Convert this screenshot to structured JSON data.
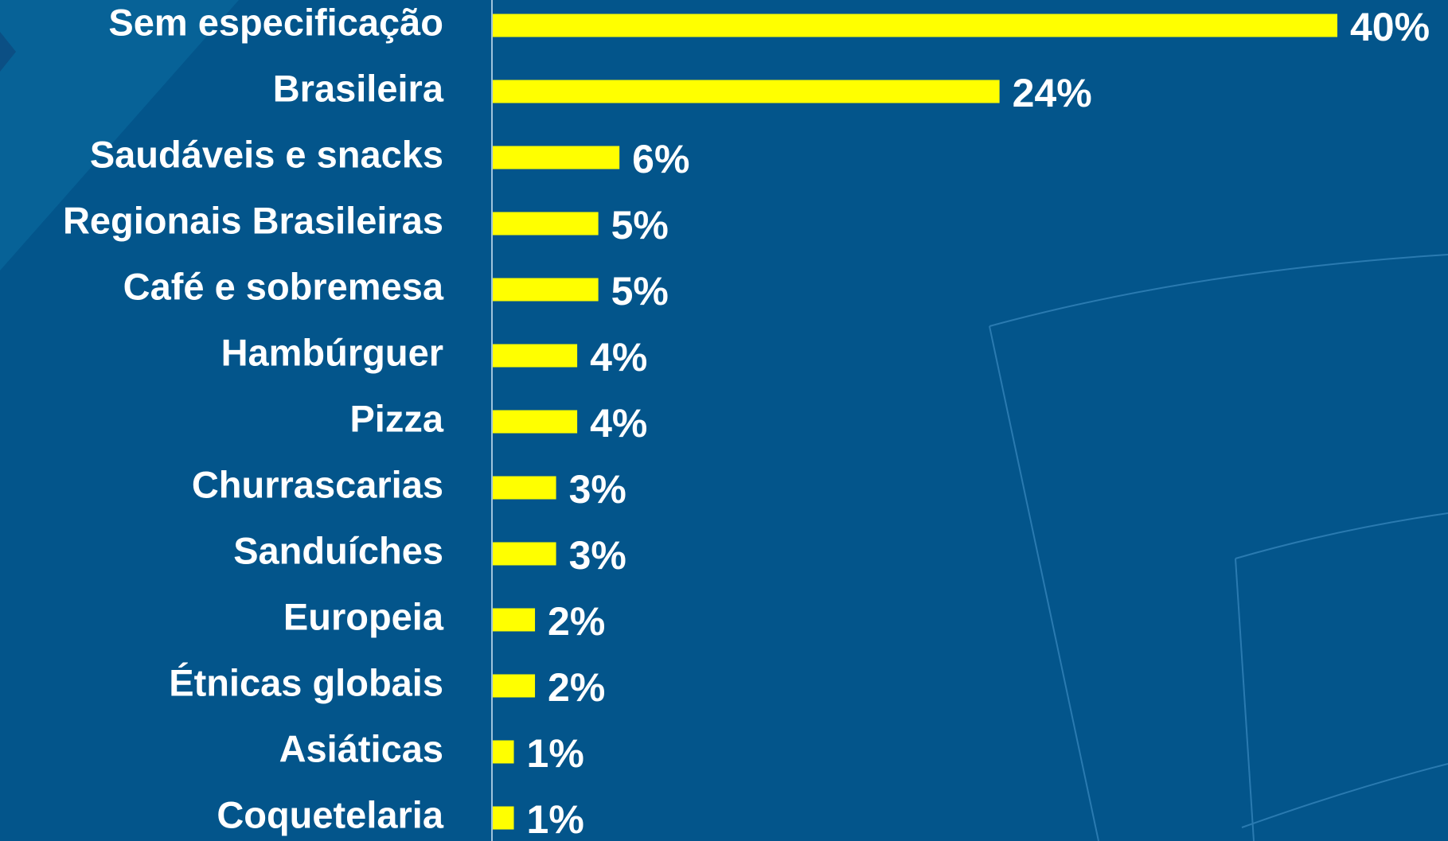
{
  "chart_data": {
    "type": "bar",
    "orientation": "horizontal",
    "categories": [
      "Sem especificação",
      "Brasileira",
      "Saudáveis e snacks",
      "Regionais Brasileiras",
      "Café e sobremesa",
      "Hambúrguer",
      "Pizza",
      "Churrascarias",
      "Sanduíches",
      "Europeia",
      "Étnicas globais",
      "Asiáticas",
      "Coquetelaria"
    ],
    "values": [
      40,
      24,
      6,
      5,
      5,
      4,
      4,
      3,
      3,
      2,
      2,
      1,
      1
    ],
    "value_labels": [
      "40%",
      "24%",
      "6%",
      "5%",
      "5%",
      "4%",
      "4%",
      "3%",
      "3%",
      "2%",
      "2%",
      "1%",
      "1%"
    ],
    "color": "#ffff00"
  }
}
